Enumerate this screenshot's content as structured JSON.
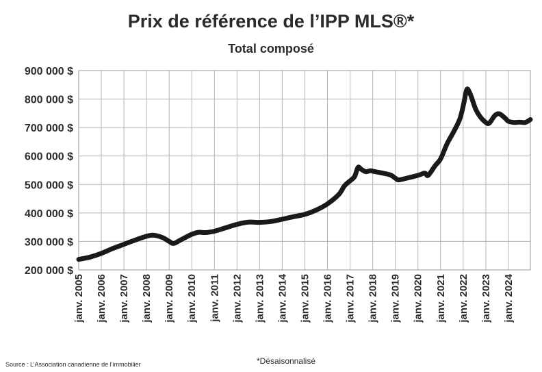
{
  "chart_data": {
    "type": "line",
    "title": "Prix de référence de l’IPP MLS®*",
    "subtitle": "Total composé",
    "footnote": "*Désaisonnalisé",
    "source": "Source : L’Association canadienne de l’immobilier",
    "grid": true,
    "legend": "none",
    "line_color": "#1a1a1a",
    "ylim": [
      200000,
      900000
    ],
    "y_ticks": [
      {
        "value": 900000,
        "label": "900 000 $"
      },
      {
        "value": 800000,
        "label": "800 000 $"
      },
      {
        "value": 700000,
        "label": "700 000 $"
      },
      {
        "value": 600000,
        "label": "600 000 $"
      },
      {
        "value": 500000,
        "label": "500 000 $"
      },
      {
        "value": 400000,
        "label": "400 000 $"
      },
      {
        "value": 300000,
        "label": "300 000 $"
      },
      {
        "value": 200000,
        "label": "200 000 $"
      }
    ],
    "xlim": [
      2005.0,
      2024.97
    ],
    "x_ticks": [
      {
        "value": 2005,
        "label": "janv. 2005"
      },
      {
        "value": 2006,
        "label": "janv. 2006"
      },
      {
        "value": 2007,
        "label": "janv. 2007"
      },
      {
        "value": 2008,
        "label": "janv. 2008"
      },
      {
        "value": 2009,
        "label": "janv. 2009"
      },
      {
        "value": 2010,
        "label": "janv. 2010"
      },
      {
        "value": 2011,
        "label": "janv. 2011"
      },
      {
        "value": 2012,
        "label": "janv. 2012"
      },
      {
        "value": 2013,
        "label": "janv. 2013"
      },
      {
        "value": 2014,
        "label": "janv. 2014"
      },
      {
        "value": 2015,
        "label": "janv. 2015"
      },
      {
        "value": 2016,
        "label": "janv. 2016"
      },
      {
        "value": 2017,
        "label": "janv. 2017"
      },
      {
        "value": 2018,
        "label": "janv. 2018"
      },
      {
        "value": 2019,
        "label": "janv. 2019"
      },
      {
        "value": 2020,
        "label": "janv. 2020"
      },
      {
        "value": 2021,
        "label": "janv. 2021"
      },
      {
        "value": 2022,
        "label": "janv. 2022"
      },
      {
        "value": 2023,
        "label": "janv. 2023"
      },
      {
        "value": 2024,
        "label": "janv. 2024"
      }
    ],
    "series": [
      {
        "values": [
          [
            2005.0,
            237000
          ],
          [
            2005.5,
            245000
          ],
          [
            2006.0,
            258000
          ],
          [
            2006.5,
            275000
          ],
          [
            2007.0,
            290000
          ],
          [
            2007.5,
            305000
          ],
          [
            2008.0,
            318000
          ],
          [
            2008.25,
            322000
          ],
          [
            2008.5,
            319000
          ],
          [
            2008.75,
            312000
          ],
          [
            2009.0,
            300000
          ],
          [
            2009.2,
            293000
          ],
          [
            2009.5,
            305000
          ],
          [
            2010.0,
            325000
          ],
          [
            2010.3,
            332000
          ],
          [
            2010.6,
            331000
          ],
          [
            2011.0,
            336000
          ],
          [
            2011.5,
            348000
          ],
          [
            2012.0,
            360000
          ],
          [
            2012.5,
            368000
          ],
          [
            2013.0,
            367000
          ],
          [
            2013.5,
            370000
          ],
          [
            2014.0,
            378000
          ],
          [
            2014.5,
            387000
          ],
          [
            2015.0,
            395000
          ],
          [
            2015.5,
            410000
          ],
          [
            2016.0,
            432000
          ],
          [
            2016.5,
            465000
          ],
          [
            2016.75,
            495000
          ],
          [
            2017.0,
            513000
          ],
          [
            2017.2,
            528000
          ],
          [
            2017.35,
            560000
          ],
          [
            2017.5,
            553000
          ],
          [
            2017.7,
            545000
          ],
          [
            2017.9,
            548000
          ],
          [
            2018.1,
            545000
          ],
          [
            2018.5,
            539000
          ],
          [
            2018.8,
            533000
          ],
          [
            2019.0,
            522000
          ],
          [
            2019.15,
            516000
          ],
          [
            2019.5,
            522000
          ],
          [
            2020.0,
            532000
          ],
          [
            2020.3,
            540000
          ],
          [
            2020.45,
            532000
          ],
          [
            2020.75,
            565000
          ],
          [
            2021.0,
            590000
          ],
          [
            2021.3,
            645000
          ],
          [
            2021.6,
            688000
          ],
          [
            2021.85,
            730000
          ],
          [
            2022.0,
            775000
          ],
          [
            2022.12,
            822000
          ],
          [
            2022.2,
            835000
          ],
          [
            2022.35,
            810000
          ],
          [
            2022.55,
            765000
          ],
          [
            2022.75,
            738000
          ],
          [
            2023.0,
            718000
          ],
          [
            2023.15,
            715000
          ],
          [
            2023.4,
            742000
          ],
          [
            2023.6,
            748000
          ],
          [
            2023.85,
            733000
          ],
          [
            2024.0,
            722000
          ],
          [
            2024.25,
            718000
          ],
          [
            2024.5,
            719000
          ],
          [
            2024.75,
            718000
          ],
          [
            2024.97,
            728000
          ]
        ]
      }
    ]
  }
}
